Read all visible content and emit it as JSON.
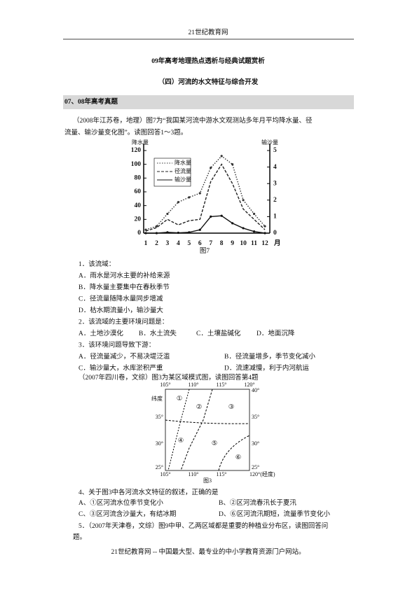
{
  "header": "21世纪教育网",
  "title": "09年高考地理热点透析与经典试题赏析",
  "subtitle": "（四）河流的水文特征与综合开发",
  "section": "07、08年高考真题",
  "intro1": [
    "（2008年江苏卷，地理）图7为“我国某河流中游水文观测站多年月平均降水量、径",
    "流量、输沙量变化图”。读图回答1～3题。"
  ],
  "chart_data": {
    "type": "line",
    "caption": "图7",
    "x_label": "月",
    "y_label": "降水量",
    "y2_label": "输沙量",
    "categories": [
      "1",
      "2",
      "3",
      "4",
      "5",
      "6",
      "7",
      "8",
      "9",
      "10",
      "11",
      "12"
    ],
    "ylim": [
      0,
      120
    ],
    "yticks": [
      0,
      20,
      40,
      60,
      80,
      100,
      120
    ],
    "y2lim": [
      0,
      5
    ],
    "y2ticks": [
      0,
      1,
      2,
      3,
      4,
      5
    ],
    "series": [
      {
        "name": "降水量",
        "color": "#333333",
        "values": [
          5,
          10,
          28,
          45,
          52,
          58,
          95,
          112,
          100,
          48,
          28,
          10
        ]
      },
      {
        "name": "径流量",
        "color": "#222222",
        "values": [
          3,
          8,
          20,
          12,
          18,
          20,
          75,
          100,
          72,
          35,
          20,
          5
        ]
      },
      {
        "name": "输沙量",
        "color": "#111111",
        "axis": "y2",
        "values": [
          0,
          0,
          0.05,
          0.02,
          0.05,
          0.2,
          1,
          1.05,
          0.6,
          0.3,
          0.1,
          0
        ]
      }
    ]
  },
  "questions": [
    {
      "stem": "1．该流域：",
      "options": [
        {
          "text": "A．雨水是河水主要的补给来源",
          "color": "#d40000"
        },
        {
          "text": "B．降水量主要集中在春秋季节",
          "color": "#111111"
        },
        {
          "text": "C．径流量随降水量同步增减",
          "color": "#111111"
        },
        {
          "text": "D．枯水期流量小，输沙量大",
          "color": "#111111"
        }
      ]
    },
    {
      "stem": "2．该流域的主要环境问题是：",
      "options": [
        {
          "text": "A．土地沙漠化",
          "color": "#111111"
        },
        {
          "text": "B．水土流失",
          "color": "#d40000"
        },
        {
          "text": "C．土壤盐碱化",
          "color": "#111111"
        },
        {
          "text": "D．地面沉降",
          "color": "#111111"
        }
      ]
    },
    {
      "stem": "3．该环境问题导致下游：",
      "options": [
        {
          "text": "A．径流量减少，不易决堤泛滥",
          "color": "#111111"
        },
        {
          "text": "B．径流量增多，季节变化减小",
          "color": "#111111"
        },
        {
          "text": "C．输沙量大，水库淤积严重",
          "color": "#d40000"
        },
        {
          "text": "D．流速减慢，利于内河航运",
          "color": "#111111"
        }
      ]
    }
  ],
  "intro2": "（2007年四川卷，文综）图3为某区域模式图，读图回答第4题",
  "figure3": {
    "caption": "图3",
    "lat_label": "纬度",
    "top": [
      "105°",
      "110°",
      "115°",
      "120°"
    ],
    "right": [
      "40°",
      "35°",
      "30°",
      "25°"
    ],
    "left": [
      "35°",
      "30°",
      "25°"
    ],
    "bottom": [
      "105°",
      "110°",
      "115°",
      "120°(经度)"
    ],
    "regions": [
      "①",
      "②",
      "③",
      "④",
      "⑤",
      "⑥"
    ]
  },
  "question4": {
    "stem": "4、关于图3中各河流水文特征的叙述，正确的是",
    "options": [
      {
        "text": "A、①区河流水位季节变化小",
        "color": "#111111"
      },
      {
        "text": "B、②区河流春汛长于夏汛",
        "color": "#111111"
      },
      {
        "text": "C、③区河流含沙量大，有结冰期",
        "color": "#d40000"
      },
      {
        "text": "D、⑥区河流汛期短，流量季节变化小",
        "color": "#111111"
      }
    ]
  },
  "question5": [
    "5．（2007年天津卷，文综）图9中甲、乙两区域都是重要的种植业分布区，读图回答问",
    "题。"
  ],
  "footer": "21世纪教育网 -- 中国最大型、最专业的中小学教育资源门户网站。"
}
